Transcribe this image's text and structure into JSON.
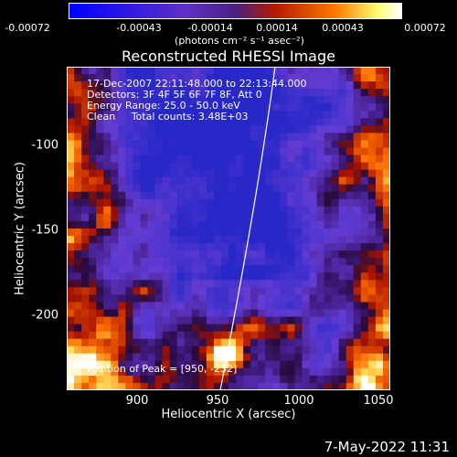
{
  "colorbar": {
    "ticks": [
      "-0.00072",
      "-0.00043",
      "-0.00014",
      "0.00014",
      "0.00043",
      "0.00072"
    ],
    "unit_label": "(photons cm⁻² s⁻¹ asec⁻²)",
    "colors": [
      "#0000ff",
      "#6a3fd0",
      "#5a2aa8",
      "#cc2200",
      "#ff6a00",
      "#ffff80",
      "#ffffff"
    ]
  },
  "title": "Reconstructed RHESSI Image",
  "info": {
    "line1": "17-Dec-2007 22:11:48.000 to 22:13:44.000",
    "line2": "Detectors: 3F 4F 5F 6F 7F 8F, Att 0",
    "line3": "Energy Range: 25.0 - 50.0 keV",
    "line4": "Clean     Total counts: 3.48E+03"
  },
  "axes": {
    "xlabel": "Heliocentric X (arcsec)",
    "ylabel": "Heliocentric Y (arcsec)",
    "xticks": [
      "900",
      "950",
      "1000",
      "1050"
    ],
    "yticks": [
      "-100",
      "-150",
      "-200"
    ],
    "xlim": [
      860,
      1050
    ],
    "ylim": [
      -245,
      -55
    ]
  },
  "peak_label": "Position of Peak = [950, -232]",
  "timestamp": "7-May-2022 11:31"
}
